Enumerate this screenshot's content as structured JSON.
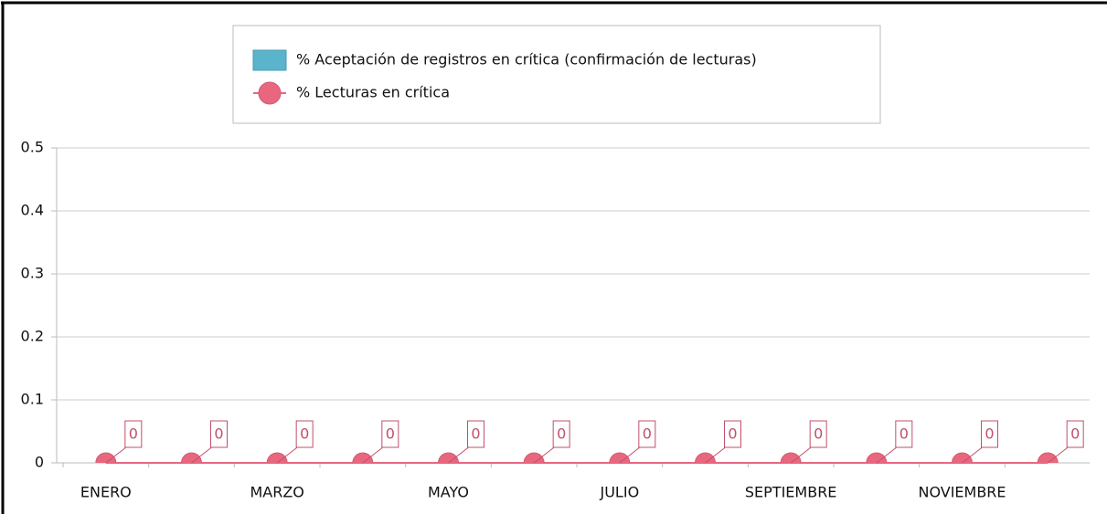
{
  "chart_data": {
    "type": "bar_line",
    "categories": [
      "ENERO",
      null,
      "MARZO",
      null,
      "MAYO",
      null,
      "JULIO",
      null,
      "SEPTIEMBRE",
      null,
      "NOVIEMBRE",
      null
    ],
    "series": [
      {
        "name": "% Aceptación de registros en crítica (confirmación de lecturas)",
        "type": "bar",
        "color": "#5ab4cc",
        "values": [
          0,
          0,
          0,
          0,
          0,
          0,
          0,
          0,
          0,
          0,
          0,
          0
        ]
      },
      {
        "name": "% Lecturas en crítica",
        "type": "line",
        "color": "#e8677f",
        "values": [
          0,
          0,
          0,
          0,
          0,
          0,
          0,
          0,
          0,
          0,
          0,
          0
        ]
      }
    ],
    "ylim": [
      0,
      0.5
    ],
    "yticks": [
      0,
      0.1,
      0.2,
      0.3,
      0.4,
      0.5
    ],
    "grid": true,
    "legend": "top"
  }
}
